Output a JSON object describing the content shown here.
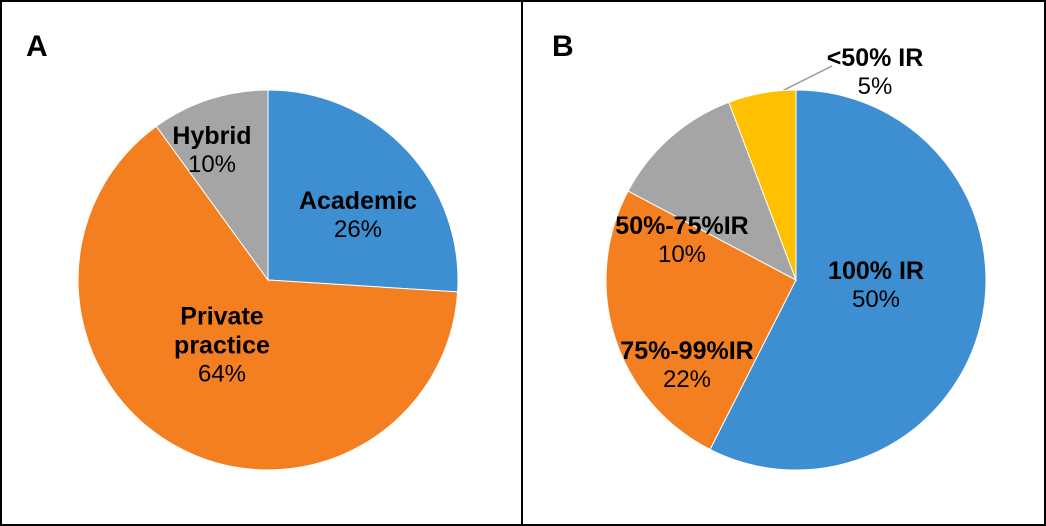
{
  "chart_data": [
    {
      "type": "pie",
      "title": "A",
      "categories": [
        "Academic",
        "Private practice",
        "Hybrid"
      ],
      "values": [
        26,
        64,
        10
      ],
      "value_labels": [
        "26%",
        "64%",
        "10%"
      ],
      "colors": [
        "#3d8fd1",
        "#f47f20",
        "#a5a5a5"
      ]
    },
    {
      "type": "pie",
      "title": "B",
      "categories": [
        "100% IR",
        "75%-99%IR",
        "50%-75%IR",
        "<50% IR"
      ],
      "values": [
        50,
        22,
        10,
        5
      ],
      "value_labels": [
        "50%",
        "22%",
        "10%",
        "5%"
      ],
      "colors": [
        "#3d8fd1",
        "#f47f20",
        "#a5a5a5",
        "#ffc000"
      ]
    }
  ]
}
